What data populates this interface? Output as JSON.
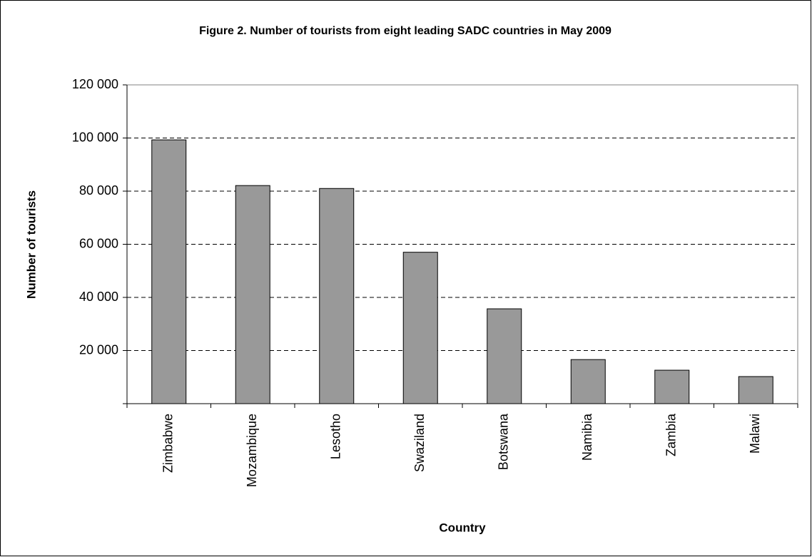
{
  "chart_data": {
    "type": "bar",
    "title": "Figure 2. Number of tourists from eight leading SADC countries in May 2009",
    "x_label": "Country",
    "y_label": "Number of tourists",
    "categories": [
      "Zimbabwe",
      "Mozambique",
      "Lesotho",
      "Swaziland",
      "Botswana",
      "Namibia",
      "Zambia",
      "Malawi"
    ],
    "values": [
      99300,
      82100,
      81000,
      57000,
      35700,
      16600,
      12600,
      10200
    ],
    "color": "#999999",
    "ylim": [
      0,
      120000
    ],
    "yticks": [
      {
        "value": 20000,
        "label": "20 000"
      },
      {
        "value": 40000,
        "label": "40 000"
      },
      {
        "value": 60000,
        "label": "60 000"
      },
      {
        "value": 80000,
        "label": "80 000"
      },
      {
        "value": 100000,
        "label": "100 000"
      },
      {
        "value": 120000,
        "label": "120 000"
      }
    ],
    "grid": true
  }
}
